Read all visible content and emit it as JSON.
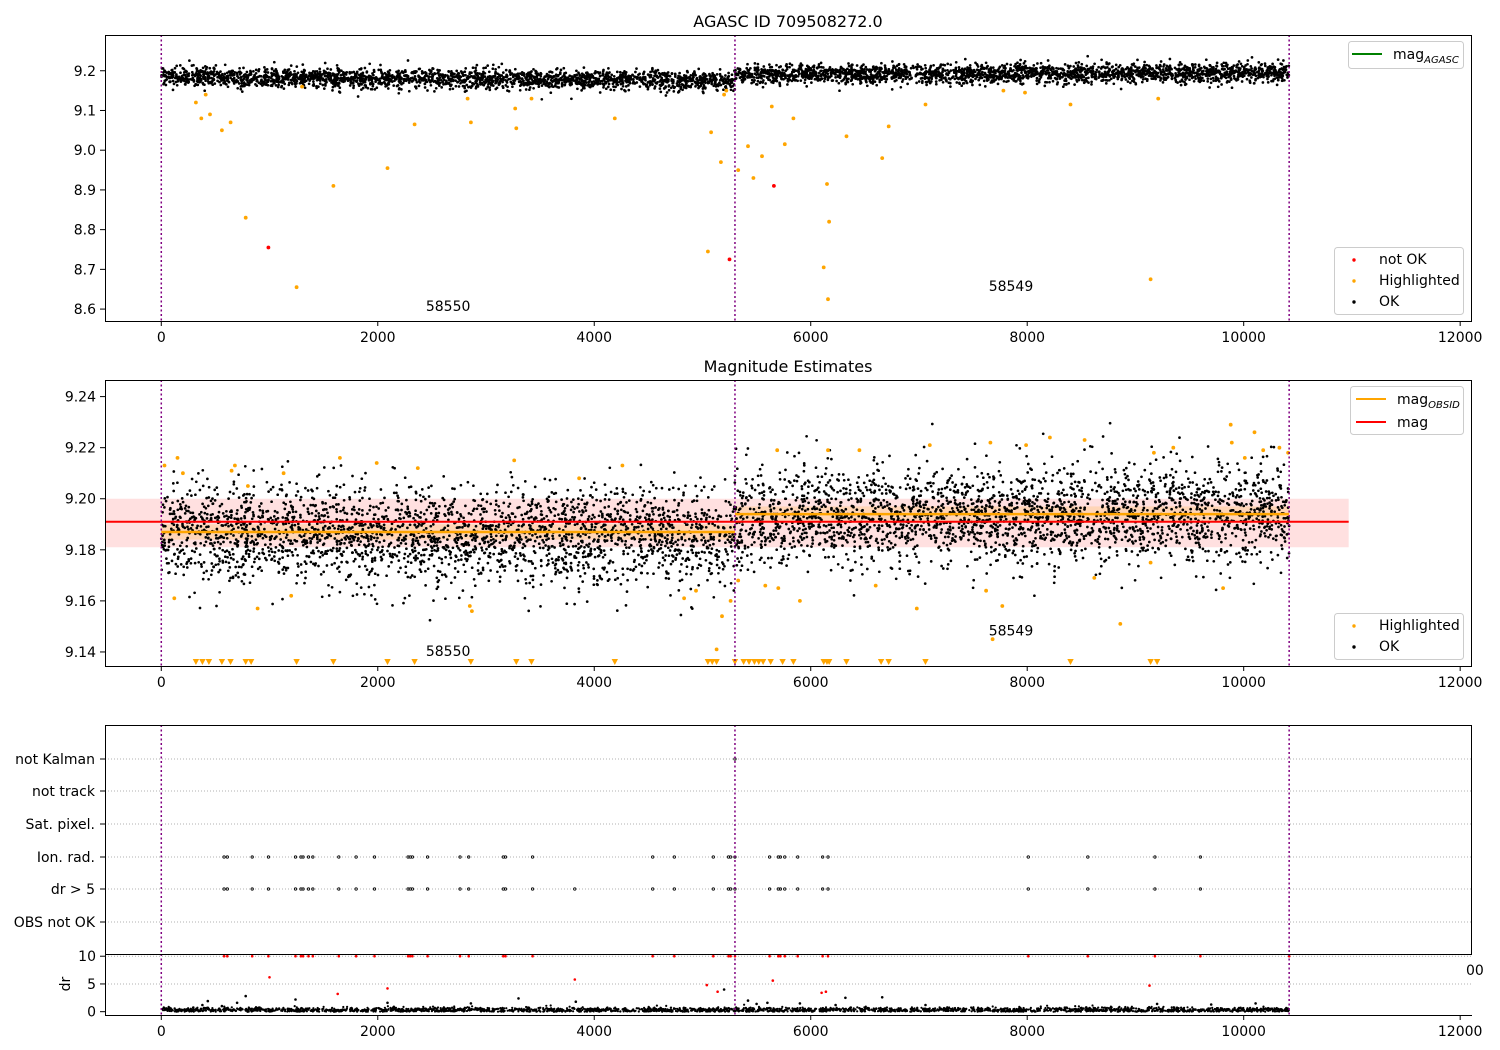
{
  "chart_data": [
    {
      "type": "scatter",
      "title": "AGASC ID 709508272.0",
      "xlabel": "",
      "ylabel": "",
      "xlim": [
        -520,
        12100
      ],
      "ylim": [
        8.57,
        9.29
      ],
      "xticks": [
        0,
        2000,
        4000,
        6000,
        8000,
        10000,
        12000
      ],
      "xtick_labels": [
        "0",
        "2000",
        "4000",
        "6000",
        "8000",
        "10000",
        "12000"
      ],
      "yticks": [
        8.6,
        8.7,
        8.8,
        8.9,
        9.0,
        9.1,
        9.2
      ],
      "ytick_labels": [
        "8.6",
        "8.7",
        "8.8",
        "8.9",
        "9.0",
        "9.1",
        "9.2"
      ],
      "obs_boundaries": [
        0,
        5300,
        10420
      ],
      "annotations": [
        {
          "text": "58550",
          "x": 2650,
          "y": 8.595
        },
        {
          "text": "58549",
          "x": 7850,
          "y": 8.645
        }
      ],
      "legend_top": {
        "placement": "upper-right",
        "entries": [
          {
            "label_main": "mag",
            "label_sub": "AGASC",
            "color": "#008000",
            "kind": "line"
          }
        ]
      },
      "legend_bottom": {
        "placement": "lower-right",
        "entries": [
          {
            "label": "not OK",
            "color": "#ff0000",
            "kind": "point"
          },
          {
            "label": "Highlighted",
            "color": "#ffa500",
            "kind": "point"
          },
          {
            "label": "OK",
            "color": "#000000",
            "kind": "point"
          }
        ]
      },
      "series": [
        {
          "name": "OK",
          "color": "#000000",
          "kind": "dense",
          "segments": [
            {
              "x": [
                0,
                5300
              ],
              "y_start": 9.185,
              "y_end": 9.175,
              "spread": 0.012
            },
            {
              "x": [
                5300,
                10420
              ],
              "y_start": 9.19,
              "y_end": 9.195,
              "spread": 0.012
            }
          ]
        },
        {
          "name": "Highlighted",
          "color": "#ffa500",
          "kind": "points",
          "x": [
            320,
            370,
            410,
            450,
            560,
            640,
            780,
            1250,
            1590,
            2090,
            2340,
            2860,
            3280,
            3420,
            4190,
            5050,
            5080,
            5170,
            5220,
            5330,
            5420,
            5470,
            5550,
            5640,
            5760,
            5840,
            6120,
            6150,
            6170,
            6160,
            6330,
            6660,
            6720,
            7060,
            7780,
            7980,
            8400,
            9140,
            9210,
            2830,
            3270,
            1300,
            5200
          ],
          "y": [
            9.12,
            9.08,
            9.14,
            9.09,
            9.05,
            9.07,
            8.83,
            8.655,
            8.91,
            8.955,
            9.065,
            9.07,
            9.055,
            9.13,
            9.08,
            8.745,
            9.045,
            8.97,
            9.15,
            8.95,
            9.01,
            8.93,
            8.985,
            9.11,
            9.015,
            9.08,
            8.705,
            8.915,
            8.82,
            8.625,
            9.035,
            8.98,
            9.06,
            9.115,
            9.15,
            9.145,
            9.115,
            8.675,
            9.13,
            9.13,
            9.105,
            9.16,
            9.14
          ]
        },
        {
          "name": "not OK",
          "color": "#ff0000",
          "kind": "points",
          "x": [
            990,
            5250,
            5660
          ],
          "y": [
            8.755,
            8.725,
            8.91
          ]
        }
      ]
    },
    {
      "type": "scatter",
      "title": "Magnitude Estimates",
      "xlabel": "",
      "ylabel": "",
      "xlim": [
        -520,
        12100
      ],
      "ylim": [
        9.1345,
        9.2465
      ],
      "xticks": [
        0,
        2000,
        4000,
        6000,
        8000,
        10000,
        12000
      ],
      "xtick_labels": [
        "0",
        "2000",
        "4000",
        "6000",
        "8000",
        "10000",
        "12000"
      ],
      "yticks": [
        9.14,
        9.16,
        9.18,
        9.2,
        9.22,
        9.24
      ],
      "ytick_labels": [
        "9.14",
        "9.16",
        "9.18",
        "9.20",
        "9.22",
        "9.24"
      ],
      "obs_boundaries": [
        0,
        5300,
        10420
      ],
      "annotations": [
        {
          "text": "58550",
          "x": 2650,
          "y": 9.1385
        },
        {
          "text": "58549",
          "x": 7850,
          "y": 9.1465
        }
      ],
      "mean_band": {
        "center": 9.191,
        "low": 9.181,
        "high": 9.2,
        "x": [
          -520,
          10970
        ],
        "color": "#ff0000"
      },
      "obsid_means": [
        {
          "x": [
            0,
            5300
          ],
          "y": 9.187
        },
        {
          "x": [
            5300,
            10420
          ],
          "y": 9.194
        }
      ],
      "obsid_bands": [
        {
          "x": [
            0,
            5300
          ],
          "low": 9.184,
          "high": 9.19
        },
        {
          "x": [
            5300,
            10420
          ],
          "low": 9.191,
          "high": 9.197
        }
      ],
      "legend_top": {
        "placement": "upper-right",
        "entries": [
          {
            "label_main": "mag",
            "label_sub": "OBSID",
            "color": "#ffa500",
            "kind": "line"
          },
          {
            "label": "mag",
            "color": "#ff0000",
            "kind": "line"
          }
        ]
      },
      "legend_bottom": {
        "placement": "lower-right",
        "entries": [
          {
            "label": "Highlighted",
            "color": "#ffa500",
            "kind": "point"
          },
          {
            "label": "OK",
            "color": "#000000",
            "kind": "point"
          }
        ]
      },
      "series": [
        {
          "name": "OK",
          "color": "#000000",
          "kind": "dense",
          "segments": [
            {
              "x": [
                0,
                5300
              ],
              "y_start": 9.187,
              "y_end": 9.185,
              "spread": 0.0095
            },
            {
              "x": [
                5300,
                10420
              ],
              "y_start": 9.193,
              "y_end": 9.194,
              "spread": 0.0095
            }
          ]
        },
        {
          "name": "Highlighted",
          "color": "#ffa500",
          "kind": "points",
          "x": [
            30,
            120,
            150,
            200,
            650,
            680,
            800,
            890,
            1130,
            1200,
            1650,
            1990,
            2370,
            2850,
            2870,
            3260,
            3860,
            4260,
            4830,
            4940,
            5130,
            5180,
            5260,
            5330,
            5580,
            5690,
            5700,
            5900,
            6160,
            6450,
            6600,
            6980,
            7100,
            7660,
            7770,
            7990,
            8210,
            8530,
            8620,
            8860,
            9170,
            9350,
            9880,
            10010,
            10100,
            10180,
            10330,
            10410,
            9810,
            9890,
            9140,
            7680,
            7620
          ],
          "y": [
            9.213,
            9.161,
            9.216,
            9.21,
            9.211,
            9.213,
            9.205,
            9.157,
            9.21,
            9.162,
            9.216,
            9.214,
            9.212,
            9.158,
            9.156,
            9.215,
            9.208,
            9.213,
            9.161,
            9.164,
            9.141,
            9.154,
            9.16,
            9.168,
            9.166,
            9.219,
            9.165,
            9.16,
            9.219,
            9.219,
            9.166,
            9.157,
            9.221,
            9.222,
            9.158,
            9.221,
            9.224,
            9.223,
            9.169,
            9.151,
            9.218,
            9.22,
            9.229,
            9.216,
            9.226,
            9.219,
            9.22,
            9.218,
            9.165,
            9.222,
            9.175,
            9.145,
            9.164
          ]
        },
        {
          "name": "Highlighted (below range)",
          "color": "#ffa500",
          "kind": "triangles",
          "x": [
            320,
            380,
            440,
            560,
            640,
            780,
            830,
            1250,
            1590,
            2090,
            2340,
            2860,
            3280,
            3420,
            4190,
            5050,
            5090,
            5130,
            5300,
            5380,
            5430,
            5480,
            5520,
            5560,
            5630,
            5740,
            5840,
            6120,
            6150,
            6170,
            6330,
            6650,
            6720,
            7060,
            8400,
            9140,
            9200
          ]
        }
      ]
    },
    {
      "type": "scatter",
      "title": "",
      "xlabel": "",
      "ylabel": "",
      "xlim": [
        -520,
        12100
      ],
      "obs_boundaries": [
        0,
        5300,
        10420
      ],
      "categories": [
        "not Kalman",
        "not track",
        "Sat. pixel.",
        "Ion. rad.",
        "dr > 5",
        "OBS not OK"
      ],
      "flag_events": {
        "Ion. rad.": [
          580,
          610,
          840,
          990,
          1240,
          1290,
          1310,
          1360,
          1400,
          1640,
          1800,
          1970,
          2280,
          2300,
          2320,
          2460,
          2760,
          2840,
          3160,
          3180,
          3430,
          4540,
          4740,
          5100,
          5240,
          5260,
          5300,
          5620,
          5700,
          5720,
          5760,
          5880,
          6110,
          6160,
          8010,
          8560,
          9180,
          9600
        ],
        "dr > 5": [
          580,
          610,
          840,
          990,
          1240,
          1290,
          1310,
          1360,
          1400,
          1640,
          1800,
          1970,
          2280,
          2300,
          2320,
          2460,
          2760,
          2840,
          3160,
          3180,
          3430,
          3820,
          4540,
          4740,
          5100,
          5240,
          5260,
          5300,
          5620,
          5700,
          5720,
          5760,
          5880,
          6110,
          6160,
          8010,
          8560,
          9180,
          9600
        ],
        "not Kalman": [
          5300
        ]
      }
    },
    {
      "type": "scatter",
      "title": "",
      "xlabel": "",
      "ylabel": "dr",
      "xlim": [
        -520,
        12100
      ],
      "ylim": [
        -0.6,
        10.4
      ],
      "xticks": [
        0,
        2000,
        4000,
        6000,
        8000,
        10000,
        12000
      ],
      "xtick_labels": [
        "0",
        "2000",
        "4000",
        "6000",
        "8000",
        "10000",
        "12000"
      ],
      "yticks": [
        0,
        5,
        10
      ],
      "ytick_labels": [
        "0",
        "5",
        "10"
      ],
      "obs_boundaries": [
        0,
        5300,
        10420
      ],
      "clipped_label": "00",
      "series": [
        {
          "name": "OK",
          "color": "#000000",
          "kind": "dense-low",
          "x": [
            0,
            10420
          ],
          "y_mean": 0.3,
          "spread": 0.25
        },
        {
          "name": "not OK",
          "color": "#ff0000",
          "kind": "points",
          "x": [
            580,
            610,
            840,
            990,
            1240,
            1290,
            1310,
            1360,
            1400,
            1640,
            1800,
            1970,
            2280,
            2300,
            2320,
            2460,
            2760,
            2840,
            3160,
            3180,
            3430,
            4540,
            4740,
            5100,
            5240,
            5260,
            5300,
            5620,
            5700,
            5720,
            5760,
            5880,
            6110,
            6160,
            8010,
            8560,
            9180,
            9600,
            1000,
            1630,
            2090,
            3820,
            5040,
            5140,
            5650,
            6100,
            6140,
            9130,
            10420
          ],
          "y": [
            10,
            10,
            10,
            10,
            10,
            10,
            10,
            10,
            10,
            10,
            10,
            10,
            10,
            10,
            10,
            10,
            10,
            10,
            10,
            10,
            10,
            10,
            10,
            10,
            10,
            10,
            10,
            10,
            10,
            10,
            10,
            10,
            10,
            10,
            10,
            10,
            10,
            10,
            6.2,
            3.2,
            4.2,
            5.8,
            4.8,
            3.6,
            5.6,
            3.4,
            3.6,
            4.7,
            10
          ]
        },
        {
          "name": "OK scattered",
          "color": "#000000",
          "kind": "points",
          "x": [
            380,
            430,
            560,
            700,
            780,
            1240,
            2090,
            2860,
            3300,
            3830,
            5200,
            5420,
            5500,
            5600,
            5900,
            6230,
            6320,
            6660,
            7060,
            9200,
            9700,
            10110
          ],
          "y": [
            1.2,
            1.9,
            1.0,
            1.6,
            2.8,
            2.2,
            1.6,
            1.5,
            2.4,
            1.8,
            4.0,
            2.0,
            1.4,
            1.6,
            1.5,
            1.2,
            2.5,
            2.6,
            1.2,
            1.4,
            1.3,
            1.5
          ]
        }
      ]
    }
  ]
}
